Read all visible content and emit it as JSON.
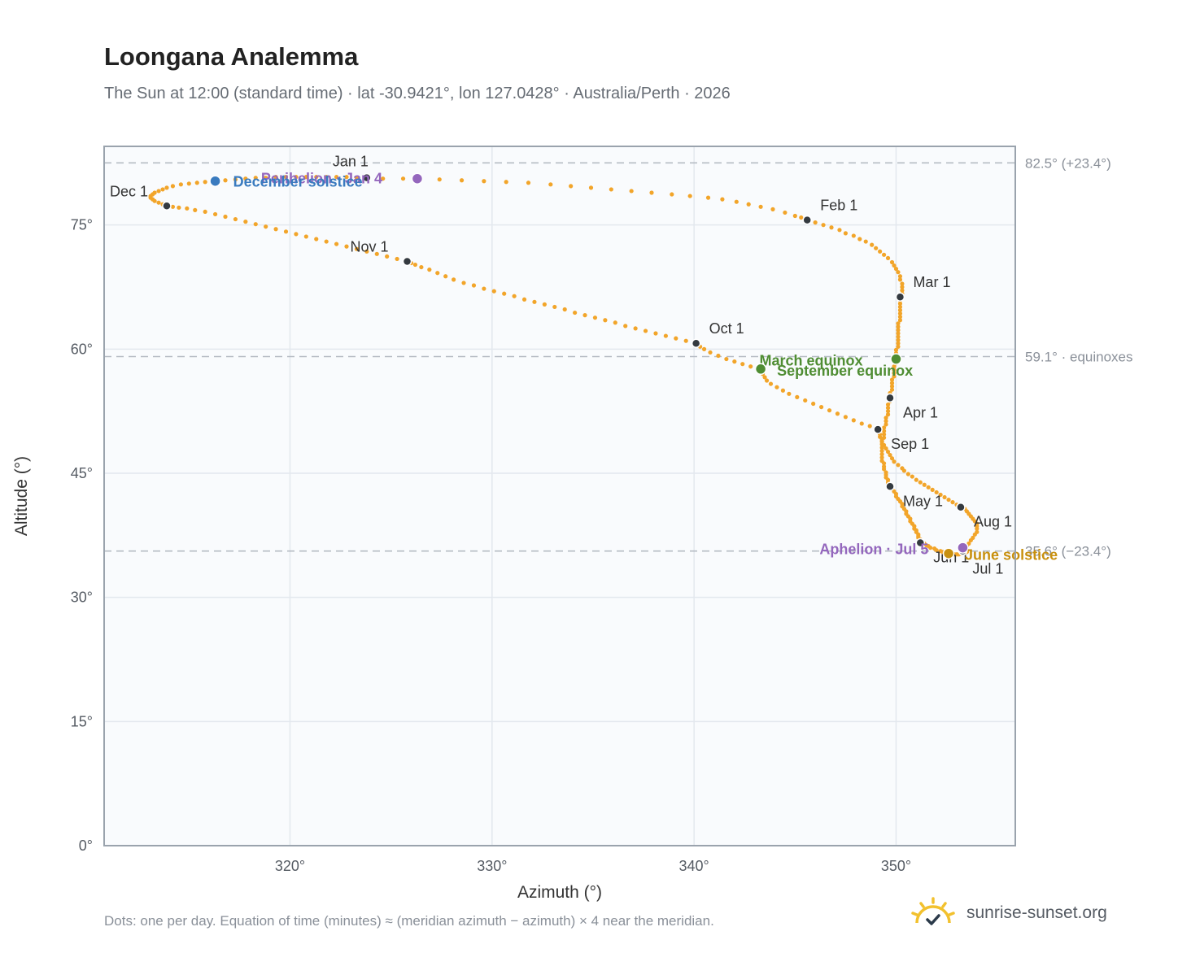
{
  "header": {
    "title": "Loongana Analemma",
    "subtitle": "The Sun at 12:00 (standard time) · lat -30.9421°, lon 127.0428° · Australia/Perth · 2026"
  },
  "footer": {
    "note": "Dots: one per day. Equation of time (minutes) ≈ (meridian azimuth − azimuth) × 4 near the meridian.",
    "brand": "sunrise-sunset.org",
    "brand_icon": "sun-logo-icon"
  },
  "colors": {
    "path": "#f2a52a",
    "month_marker": "#343a40",
    "perihelion": "#9467bd",
    "aphelion": "#9467bd",
    "december_solstice": "#3a7bbf",
    "june_solstice": "#c8900f",
    "equinox": "#4f8d33",
    "ref_line": "#b6bcc4",
    "plot_bg": "#f9fbfd",
    "grid": "#e3e8ee",
    "frame": "#9aa3ad"
  },
  "chart_data": {
    "type": "scatter",
    "xlabel": "Azimuth (°)",
    "ylabel": "Altitude (°)",
    "xlim": [
      310.8,
      355.9
    ],
    "ylim": [
      0,
      84.5
    ],
    "x_ticks": [
      {
        "value": 320,
        "label": "320°"
      },
      {
        "value": 330,
        "label": "330°"
      },
      {
        "value": 340,
        "label": "340°"
      },
      {
        "value": 350,
        "label": "350°"
      }
    ],
    "y_ticks": [
      {
        "value": 0,
        "label": "0°"
      },
      {
        "value": 15,
        "label": "15°"
      },
      {
        "value": 30,
        "label": "30°"
      },
      {
        "value": 45,
        "label": "45°"
      },
      {
        "value": 60,
        "label": "60°"
      },
      {
        "value": 75,
        "label": "75°"
      }
    ],
    "grid": true,
    "reference_lines": [
      {
        "value": 82.5,
        "label": "82.5° (+23.4°)"
      },
      {
        "value": 59.1,
        "label": "59.1° · equinoxes"
      },
      {
        "value": 35.6,
        "label": "35.6° (−23.4°)"
      }
    ],
    "month_markers": [
      {
        "label": "Jan 1",
        "x": 323.8,
        "y": 80.7
      },
      {
        "label": "Feb 1",
        "x": 345.6,
        "y": 75.6
      },
      {
        "label": "Mar 1",
        "x": 350.2,
        "y": 66.3
      },
      {
        "label": "Apr 1",
        "x": 349.7,
        "y": 54.1
      },
      {
        "label": "May 1",
        "x": 349.7,
        "y": 43.4
      },
      {
        "label": "Jun 1",
        "x": 351.2,
        "y": 36.6
      },
      {
        "label": "Jul 1",
        "x": 353.3,
        "y": 35.6
      },
      {
        "label": "Aug 1",
        "x": 353.2,
        "y": 40.9
      },
      {
        "label": "Sep 1",
        "x": 349.1,
        "y": 50.3
      },
      {
        "label": "Oct 1",
        "x": 340.1,
        "y": 60.7
      },
      {
        "label": "Nov 1",
        "x": 325.8,
        "y": 70.6
      },
      {
        "label": "Dec 1",
        "x": 313.9,
        "y": 77.3
      }
    ],
    "events": [
      {
        "label": "Perihelion · Jan 4",
        "x": 326.3,
        "y": 80.6,
        "color_key": "perihelion"
      },
      {
        "label": "December solstice",
        "x": 316.3,
        "y": 80.3,
        "color_key": "december_solstice"
      },
      {
        "label": "March equinox",
        "x": 350.0,
        "y": 58.8,
        "color_key": "equinox"
      },
      {
        "label": "September equinox",
        "x": 343.3,
        "y": 57.6,
        "color_key": "equinox"
      },
      {
        "label": "Aphelion · Jul 5",
        "x": 353.3,
        "y": 36.0,
        "color_key": "aphelion"
      },
      {
        "label": "June solstice",
        "x": 352.6,
        "y": 35.3,
        "color_key": "june_solstice"
      }
    ],
    "daily_points": [
      [
        323.8,
        80.7
      ],
      [
        324.6,
        80.6
      ],
      [
        325.6,
        80.6
      ],
      [
        326.3,
        80.6
      ],
      [
        327.4,
        80.5
      ],
      [
        328.5,
        80.4
      ],
      [
        329.6,
        80.3
      ],
      [
        330.7,
        80.2
      ],
      [
        331.8,
        80.1
      ],
      [
        332.9,
        79.9
      ],
      [
        333.9,
        79.7
      ],
      [
        334.9,
        79.5
      ],
      [
        335.9,
        79.3
      ],
      [
        336.9,
        79.1
      ],
      [
        337.9,
        78.9
      ],
      [
        338.9,
        78.7
      ],
      [
        339.8,
        78.5
      ],
      [
        340.7,
        78.3
      ],
      [
        341.4,
        78.1
      ],
      [
        342.1,
        77.8
      ],
      [
        342.7,
        77.5
      ],
      [
        343.3,
        77.2
      ],
      [
        343.9,
        76.9
      ],
      [
        344.5,
        76.5
      ],
      [
        345.0,
        76.1
      ],
      [
        345.3,
        75.9
      ],
      [
        345.6,
        75.6
      ],
      [
        346.0,
        75.3
      ],
      [
        346.4,
        75.0
      ],
      [
        346.8,
        74.7
      ],
      [
        347.2,
        74.4
      ],
      [
        347.5,
        74.0
      ],
      [
        347.9,
        73.7
      ],
      [
        348.2,
        73.3
      ],
      [
        348.5,
        73.0
      ],
      [
        348.8,
        72.6
      ],
      [
        349.0,
        72.2
      ],
      [
        349.2,
        71.8
      ],
      [
        349.4,
        71.4
      ],
      [
        349.6,
        71.0
      ],
      [
        349.8,
        70.5
      ],
      [
        349.9,
        70.1
      ],
      [
        350.0,
        69.7
      ],
      [
        350.1,
        69.3
      ],
      [
        350.2,
        68.8
      ],
      [
        350.2,
        68.4
      ],
      [
        350.3,
        67.9
      ],
      [
        350.3,
        67.5
      ],
      [
        350.3,
        67.1
      ],
      [
        350.3,
        66.7
      ],
      [
        350.2,
        66.3
      ],
      [
        350.2,
        65.9
      ],
      [
        350.2,
        65.5
      ],
      [
        350.2,
        65.1
      ],
      [
        350.2,
        64.7
      ],
      [
        350.2,
        64.3
      ],
      [
        350.2,
        63.9
      ],
      [
        350.2,
        63.5
      ],
      [
        350.1,
        63.1
      ],
      [
        350.1,
        62.7
      ],
      [
        350.1,
        62.3
      ],
      [
        350.1,
        61.9
      ],
      [
        350.1,
        61.5
      ],
      [
        350.1,
        61.1
      ],
      [
        350.1,
        60.7
      ],
      [
        350.1,
        60.3
      ],
      [
        350.0,
        59.9
      ],
      [
        350.0,
        59.5
      ],
      [
        350.0,
        59.1
      ],
      [
        350.0,
        58.8
      ],
      [
        350.0,
        58.3
      ],
      [
        349.9,
        57.9
      ],
      [
        349.9,
        57.5
      ],
      [
        349.9,
        57.1
      ],
      [
        349.9,
        56.7
      ],
      [
        349.8,
        56.3
      ],
      [
        349.8,
        55.9
      ],
      [
        349.8,
        55.5
      ],
      [
        349.8,
        55.1
      ],
      [
        349.7,
        54.7
      ],
      [
        349.7,
        54.4
      ],
      [
        349.7,
        54.1
      ],
      [
        349.7,
        53.7
      ],
      [
        349.6,
        53.3
      ],
      [
        349.6,
        52.9
      ],
      [
        349.6,
        52.5
      ],
      [
        349.6,
        52.1
      ],
      [
        349.5,
        51.7
      ],
      [
        349.5,
        51.3
      ],
      [
        349.5,
        50.9
      ],
      [
        349.4,
        50.5
      ],
      [
        349.4,
        50.1
      ],
      [
        349.4,
        49.7
      ],
      [
        349.4,
        49.3
      ],
      [
        349.3,
        48.9
      ],
      [
        349.3,
        48.5
      ],
      [
        349.3,
        48.1
      ],
      [
        349.3,
        47.7
      ],
      [
        349.3,
        47.3
      ],
      [
        349.3,
        46.9
      ],
      [
        349.3,
        46.5
      ],
      [
        349.4,
        46.2
      ],
      [
        349.4,
        45.8
      ],
      [
        349.4,
        45.5
      ],
      [
        349.5,
        45.1
      ],
      [
        349.5,
        44.8
      ],
      [
        349.5,
        44.5
      ],
      [
        349.6,
        44.2
      ],
      [
        349.6,
        43.9
      ],
      [
        349.6,
        43.7
      ],
      [
        349.6,
        43.5
      ],
      [
        349.7,
        43.4
      ],
      [
        349.8,
        43.1
      ],
      [
        349.9,
        42.8
      ],
      [
        350.0,
        42.5
      ],
      [
        350.0,
        42.2
      ],
      [
        350.1,
        41.9
      ],
      [
        350.2,
        41.6
      ],
      [
        350.3,
        41.3
      ],
      [
        350.3,
        41.0
      ],
      [
        350.4,
        40.7
      ],
      [
        350.5,
        40.4
      ],
      [
        350.5,
        40.1
      ],
      [
        350.6,
        39.8
      ],
      [
        350.7,
        39.5
      ],
      [
        350.7,
        39.2
      ],
      [
        350.8,
        38.9
      ],
      [
        350.9,
        38.6
      ],
      [
        350.9,
        38.3
      ],
      [
        351.0,
        38.1
      ],
      [
        351.0,
        37.9
      ],
      [
        351.1,
        37.6
      ],
      [
        351.1,
        37.4
      ],
      [
        351.1,
        37.2
      ],
      [
        351.2,
        37.0
      ],
      [
        351.2,
        36.8
      ],
      [
        351.2,
        36.7
      ],
      [
        351.2,
        36.6
      ],
      [
        351.4,
        36.5
      ],
      [
        351.5,
        36.3
      ],
      [
        351.6,
        36.2
      ],
      [
        351.7,
        36.0
      ],
      [
        351.9,
        35.9
      ],
      [
        352.0,
        35.7
      ],
      [
        352.2,
        35.6
      ],
      [
        352.3,
        35.5
      ],
      [
        352.5,
        35.4
      ],
      [
        352.6,
        35.3
      ],
      [
        352.7,
        35.3
      ],
      [
        352.8,
        35.2
      ],
      [
        352.9,
        35.2
      ],
      [
        353.0,
        35.2
      ],
      [
        353.1,
        35.2
      ],
      [
        353.2,
        35.3
      ],
      [
        353.3,
        35.3
      ],
      [
        353.4,
        35.4
      ],
      [
        353.5,
        35.5
      ],
      [
        353.5,
        35.5
      ],
      [
        353.4,
        35.6
      ],
      [
        353.3,
        35.6
      ],
      [
        353.3,
        35.6
      ],
      [
        353.3,
        35.6
      ],
      [
        353.3,
        35.6
      ],
      [
        353.3,
        35.6
      ],
      [
        353.3,
        35.6
      ],
      [
        353.3,
        35.6
      ],
      [
        353.3,
        35.6
      ],
      [
        353.3,
        35.6
      ],
      [
        353.4,
        35.9
      ],
      [
        353.5,
        36.2
      ],
      [
        353.6,
        36.5
      ],
      [
        353.7,
        36.9
      ],
      [
        353.8,
        37.2
      ],
      [
        353.9,
        37.6
      ],
      [
        354.0,
        37.9
      ],
      [
        354.0,
        38.3
      ],
      [
        354.0,
        38.6
      ],
      [
        354.0,
        38.9
      ],
      [
        353.9,
        39.2
      ],
      [
        353.8,
        39.5
      ],
      [
        353.7,
        39.8
      ],
      [
        353.6,
        40.1
      ],
      [
        353.5,
        40.4
      ],
      [
        353.4,
        40.7
      ],
      [
        353.3,
        40.8
      ],
      [
        353.2,
        40.9
      ],
      [
        353.0,
        41.2
      ],
      [
        352.8,
        41.5
      ],
      [
        352.6,
        41.8
      ],
      [
        352.4,
        42.1
      ],
      [
        352.2,
        42.4
      ],
      [
        352.0,
        42.7
      ],
      [
        351.8,
        43.0
      ],
      [
        351.6,
        43.3
      ],
      [
        351.4,
        43.6
      ],
      [
        351.2,
        43.9
      ],
      [
        351.0,
        44.2
      ],
      [
        350.8,
        44.6
      ],
      [
        350.6,
        44.9
      ],
      [
        350.4,
        45.3
      ],
      [
        350.3,
        45.6
      ],
      [
        350.1,
        46.0
      ],
      [
        349.9,
        46.4
      ],
      [
        349.8,
        46.8
      ],
      [
        349.7,
        47.2
      ],
      [
        349.6,
        47.6
      ],
      [
        349.5,
        48.0
      ],
      [
        349.4,
        48.4
      ],
      [
        349.3,
        48.8
      ],
      [
        349.3,
        49.1
      ],
      [
        349.2,
        49.4
      ],
      [
        349.2,
        49.7
      ],
      [
        349.1,
        50.0
      ],
      [
        349.1,
        50.1
      ],
      [
        349.1,
        50.2
      ],
      [
        349.1,
        50.3
      ],
      [
        348.7,
        50.7
      ],
      [
        348.3,
        51.0
      ],
      [
        347.9,
        51.4
      ],
      [
        347.5,
        51.8
      ],
      [
        347.1,
        52.2
      ],
      [
        346.7,
        52.6
      ],
      [
        346.3,
        53.0
      ],
      [
        345.9,
        53.4
      ],
      [
        345.5,
        53.8
      ],
      [
        345.1,
        54.2
      ],
      [
        344.7,
        54.6
      ],
      [
        344.4,
        55.0
      ],
      [
        344.1,
        55.4
      ],
      [
        343.8,
        55.8
      ],
      [
        343.6,
        56.2
      ],
      [
        343.5,
        56.6
      ],
      [
        343.4,
        57.0
      ],
      [
        343.3,
        57.4
      ],
      [
        343.3,
        57.6
      ],
      [
        342.8,
        57.9
      ],
      [
        342.4,
        58.2
      ],
      [
        342.0,
        58.5
      ],
      [
        341.6,
        58.8
      ],
      [
        341.2,
        59.2
      ],
      [
        340.8,
        59.6
      ],
      [
        340.5,
        60.0
      ],
      [
        340.3,
        60.3
      ],
      [
        340.2,
        60.5
      ],
      [
        340.1,
        60.6
      ],
      [
        340.1,
        60.7
      ],
      [
        339.6,
        61.0
      ],
      [
        339.1,
        61.3
      ],
      [
        338.6,
        61.6
      ],
      [
        338.1,
        61.9
      ],
      [
        337.6,
        62.2
      ],
      [
        337.1,
        62.5
      ],
      [
        336.6,
        62.8
      ],
      [
        336.1,
        63.2
      ],
      [
        335.6,
        63.5
      ],
      [
        335.1,
        63.8
      ],
      [
        334.6,
        64.1
      ],
      [
        334.1,
        64.4
      ],
      [
        333.6,
        64.8
      ],
      [
        333.1,
        65.1
      ],
      [
        332.6,
        65.4
      ],
      [
        332.1,
        65.7
      ],
      [
        331.6,
        66.0
      ],
      [
        331.1,
        66.4
      ],
      [
        330.6,
        66.7
      ],
      [
        330.1,
        67.0
      ],
      [
        329.6,
        67.3
      ],
      [
        329.1,
        67.7
      ],
      [
        328.6,
        68.0
      ],
      [
        328.1,
        68.4
      ],
      [
        327.7,
        68.8
      ],
      [
        327.3,
        69.2
      ],
      [
        326.9,
        69.6
      ],
      [
        326.5,
        69.9
      ],
      [
        326.2,
        70.2
      ],
      [
        326.0,
        70.4
      ],
      [
        325.8,
        70.6
      ],
      [
        325.3,
        70.9
      ],
      [
        324.8,
        71.2
      ],
      [
        324.3,
        71.5
      ],
      [
        323.8,
        71.8
      ],
      [
        323.3,
        72.1
      ],
      [
        322.8,
        72.4
      ],
      [
        322.3,
        72.7
      ],
      [
        321.8,
        73.0
      ],
      [
        321.3,
        73.3
      ],
      [
        320.8,
        73.6
      ],
      [
        320.3,
        73.9
      ],
      [
        319.8,
        74.2
      ],
      [
        319.3,
        74.5
      ],
      [
        318.8,
        74.8
      ],
      [
        318.3,
        75.1
      ],
      [
        317.8,
        75.4
      ],
      [
        317.3,
        75.7
      ],
      [
        316.8,
        76.0
      ],
      [
        316.3,
        76.3
      ],
      [
        315.8,
        76.6
      ],
      [
        315.3,
        76.8
      ],
      [
        314.9,
        77.0
      ],
      [
        314.5,
        77.1
      ],
      [
        314.2,
        77.2
      ],
      [
        314.0,
        77.3
      ],
      [
        313.9,
        77.3
      ],
      [
        313.8,
        77.3
      ],
      [
        313.9,
        77.3
      ],
      [
        313.9,
        77.3
      ],
      [
        313.9,
        77.3
      ],
      [
        313.7,
        77.5
      ],
      [
        313.5,
        77.7
      ],
      [
        313.3,
        77.9
      ],
      [
        313.2,
        78.1
      ],
      [
        313.1,
        78.3
      ],
      [
        313.1,
        78.5
      ],
      [
        313.2,
        78.7
      ],
      [
        313.3,
        78.9
      ],
      [
        313.5,
        79.1
      ],
      [
        313.7,
        79.3
      ],
      [
        313.9,
        79.5
      ],
      [
        314.2,
        79.7
      ],
      [
        314.6,
        79.9
      ],
      [
        315.0,
        80.0
      ],
      [
        315.4,
        80.1
      ],
      [
        315.8,
        80.2
      ],
      [
        316.3,
        80.3
      ],
      [
        316.8,
        80.4
      ],
      [
        317.3,
        80.5
      ],
      [
        317.8,
        80.6
      ],
      [
        318.3,
        80.7
      ],
      [
        318.8,
        80.7
      ],
      [
        319.3,
        80.8
      ],
      [
        319.8,
        80.8
      ],
      [
        320.3,
        80.8
      ],
      [
        320.8,
        80.8
      ],
      [
        321.3,
        80.8
      ],
      [
        321.8,
        80.8
      ],
      [
        322.3,
        80.8
      ],
      [
        322.8,
        80.8
      ],
      [
        323.3,
        80.7
      ]
    ]
  }
}
